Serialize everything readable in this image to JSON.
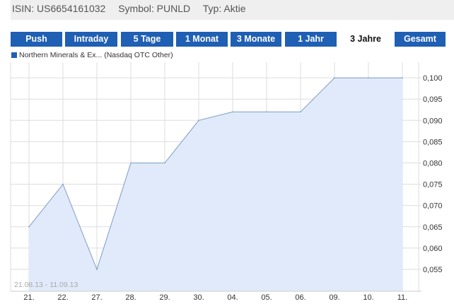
{
  "header": {
    "isin": "ISIN: US6654161032",
    "symbol": "Symbol: PUNLD",
    "type": "Typ: Aktie"
  },
  "tabs": [
    {
      "label": "Push"
    },
    {
      "label": "Intraday"
    },
    {
      "label": "5 Tage"
    },
    {
      "label": "1 Monat"
    },
    {
      "label": "3 Monate"
    },
    {
      "label": "1 Jahr"
    },
    {
      "label": "3 Jahre",
      "active": true
    },
    {
      "label": "Gesamt"
    }
  ],
  "legend": {
    "label": "Northern Minerals & Ex... (Nasdaq OTC Other)",
    "color": "#1f5fb4"
  },
  "chart_data": {
    "type": "area",
    "date_range": "21.08.13 - 11.09.13",
    "categories": [
      "21.",
      "22.",
      "27.",
      "28.",
      "29.",
      "30.",
      "04.",
      "05.",
      "06.",
      "09.",
      "10.",
      "11."
    ],
    "values": [
      0.065,
      0.075,
      0.055,
      0.08,
      0.08,
      0.09,
      0.092,
      0.092,
      0.092,
      0.1,
      0.1,
      0.1
    ],
    "yticks": [
      "0,055",
      "0,060",
      "0,065",
      "0,070",
      "0,075",
      "0,080",
      "0,085",
      "0,090",
      "0,095",
      "0,100"
    ],
    "ylim": [
      0.05,
      0.1035
    ],
    "grid": true,
    "line_color": "#7f9cc4",
    "fill_color": "#e0eafa"
  }
}
